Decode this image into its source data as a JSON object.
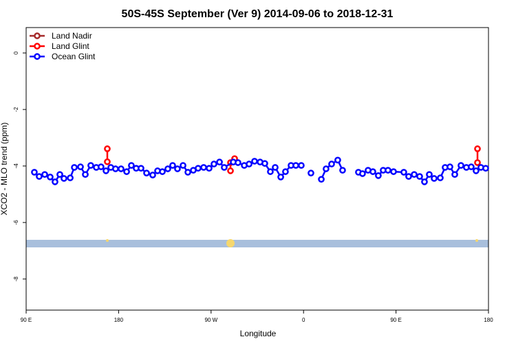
{
  "chart_data": {
    "type": "line",
    "title": "50S-45S September (Ver 9)   2014-09-06 to 2018-12-31",
    "x_label": "Longitude",
    "y_label": "XCO2 - MLO trend (ppm)",
    "xlim": [
      90,
      540
    ],
    "xticks": [
      {
        "value": 90,
        "label": "90 E"
      },
      {
        "value": 180,
        "label": "180"
      },
      {
        "value": 270,
        "label": "90 W"
      },
      {
        "value": 360,
        "label": "0"
      },
      {
        "value": 450,
        "label": "90 E"
      },
      {
        "value": 540,
        "label": "180"
      }
    ],
    "ylim": [
      -9.1,
      0.9
    ],
    "yticks": [
      0,
      -2,
      -4,
      -6,
      -8
    ],
    "legend": "top-left",
    "series": [
      {
        "name": "Land Nadir",
        "color": "#a52a2a",
        "x": [],
        "values": []
      },
      {
        "name": "Land Glint",
        "color": "#ff0000",
        "x": [
          169.0,
          169.0,
          null,
          288.9,
          288.9,
          292.9,
          null,
          529.3,
          529.3
        ],
        "values": [
          -3.85,
          -3.39,
          null,
          -4.17,
          -3.88,
          -3.74,
          null,
          -3.88,
          -3.39
        ]
      },
      {
        "name": "Ocean Glint",
        "color": "#0000ff",
        "x": [
          98.0,
          102.7,
          108.1,
          113.4,
          118.1,
          122.8,
          126.8,
          132.9,
          136.9,
          142.9,
          147.6,
          152.9,
          158.3,
          162.9,
          167.7,
          172.4,
          177.0,
          182.4,
          187.8,
          192.4,
          197.1,
          201.8,
          207.2,
          213.2,
          217.9,
          222.6,
          227.9,
          232.6,
          237.3,
          242.7,
          247.4,
          252.7,
          257.4,
          262.8,
          268.1,
          272.8,
          278.2,
          282.8,
          291.6,
          296.2,
          302.3,
          307.0,
          312.3,
          317.7,
          322.3,
          327.7,
          332.4,
          337.8,
          342.4,
          347.8,
          352.5,
          357.8,
          null,
          367.2,
          null,
          377.3,
          381.9,
          387.3,
          393.3,
          398.0,
          null,
          413.4,
          417.4,
          422.8,
          427.5,
          432.8,
          437.5,
          442.2,
          447.6,
          457.6,
          462.3,
          467.7,
          473.0,
          477.7,
          482.4,
          487.1,
          493.1,
          497.8,
          502.5,
          507.2,
          513.2,
          518.5,
          523.2,
          527.9,
          532.6,
          537.3
        ],
        "values": [
          -4.22,
          -4.37,
          -4.3,
          -4.39,
          -4.56,
          -4.3,
          -4.44,
          -4.42,
          -4.05,
          -4.03,
          -4.3,
          -3.98,
          -4.05,
          -4.03,
          -4.17,
          -4.05,
          -4.1,
          -4.1,
          -4.2,
          -3.98,
          -4.08,
          -4.08,
          -4.25,
          -4.32,
          -4.17,
          -4.2,
          -4.1,
          -3.98,
          -4.1,
          -3.98,
          -4.22,
          -4.15,
          -4.08,
          -4.05,
          -4.08,
          -3.93,
          -3.86,
          -4.05,
          -3.86,
          -3.88,
          -3.98,
          -3.93,
          -3.83,
          -3.86,
          -3.91,
          -4.2,
          -4.05,
          -4.39,
          -4.2,
          -3.98,
          -3.98,
          -3.98,
          null,
          -4.25,
          null,
          -4.47,
          -4.1,
          -3.93,
          -3.79,
          -4.15,
          null,
          -4.22,
          -4.27,
          -4.15,
          -4.2,
          -4.34,
          -4.15,
          -4.15,
          -4.2,
          -4.22,
          -4.37,
          -4.3,
          -4.37,
          -4.56,
          -4.3,
          -4.44,
          -4.42,
          -4.05,
          -4.03,
          -4.3,
          -3.98,
          -4.05,
          -4.03,
          -4.17,
          -4.05,
          -4.08
        ]
      }
    ]
  }
}
